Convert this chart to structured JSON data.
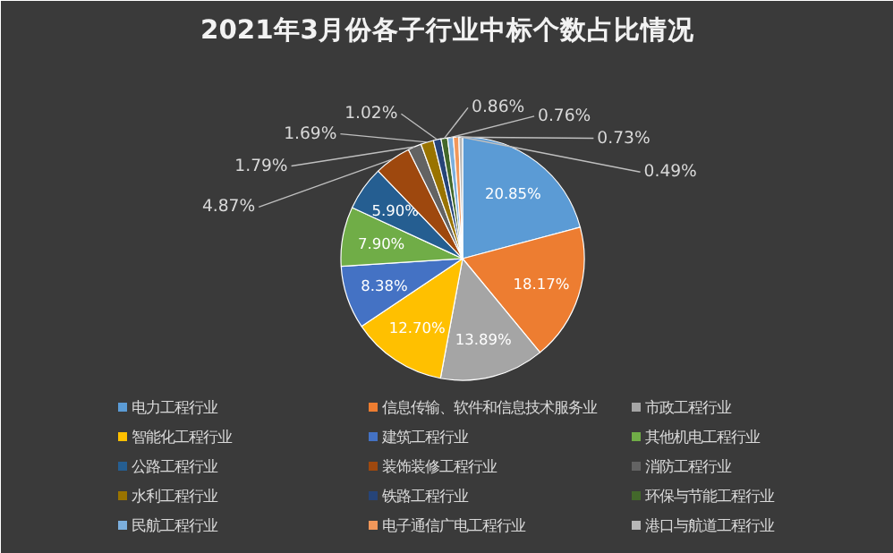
{
  "chart_data": {
    "type": "pie",
    "title": "2021年3月份各子行业中标个数占比情况",
    "categories": [
      "电力工程行业",
      "信息传输、软件和信息技术服务业",
      "市政工程行业",
      "智能化工程行业",
      "建筑工程行业",
      "其他机电工程行业",
      "公路工程行业",
      "装饰装修工程行业",
      "消防工程行业",
      "水利工程行业",
      "铁路工程行业",
      "环保与节能工程行业",
      "民航工程行业",
      "电子通信广电工程行业",
      "港口与航道工程行业"
    ],
    "values": [
      20.85,
      18.17,
      13.89,
      12.7,
      8.38,
      7.9,
      5.9,
      4.87,
      1.79,
      1.69,
      1.02,
      0.86,
      0.76,
      0.73,
      0.49
    ],
    "value_labels": [
      "20.85%",
      "18.17%",
      "13.89%",
      "12.70%",
      "8.38%",
      "7.90%",
      "5.90%",
      "4.87%",
      "1.79%",
      "1.69%",
      "1.02%",
      "0.86%",
      "0.76%",
      "0.73%",
      "0.49%"
    ],
    "colors": [
      "#5b9bd5",
      "#ed7d31",
      "#a5a5a5",
      "#ffc000",
      "#4472c4",
      "#70ad47",
      "#255e91",
      "#9e480e",
      "#636363",
      "#997300",
      "#264478",
      "#43682b",
      "#7cafdd",
      "#f1975a",
      "#b7b7b7"
    ],
    "legend": "bottom"
  }
}
